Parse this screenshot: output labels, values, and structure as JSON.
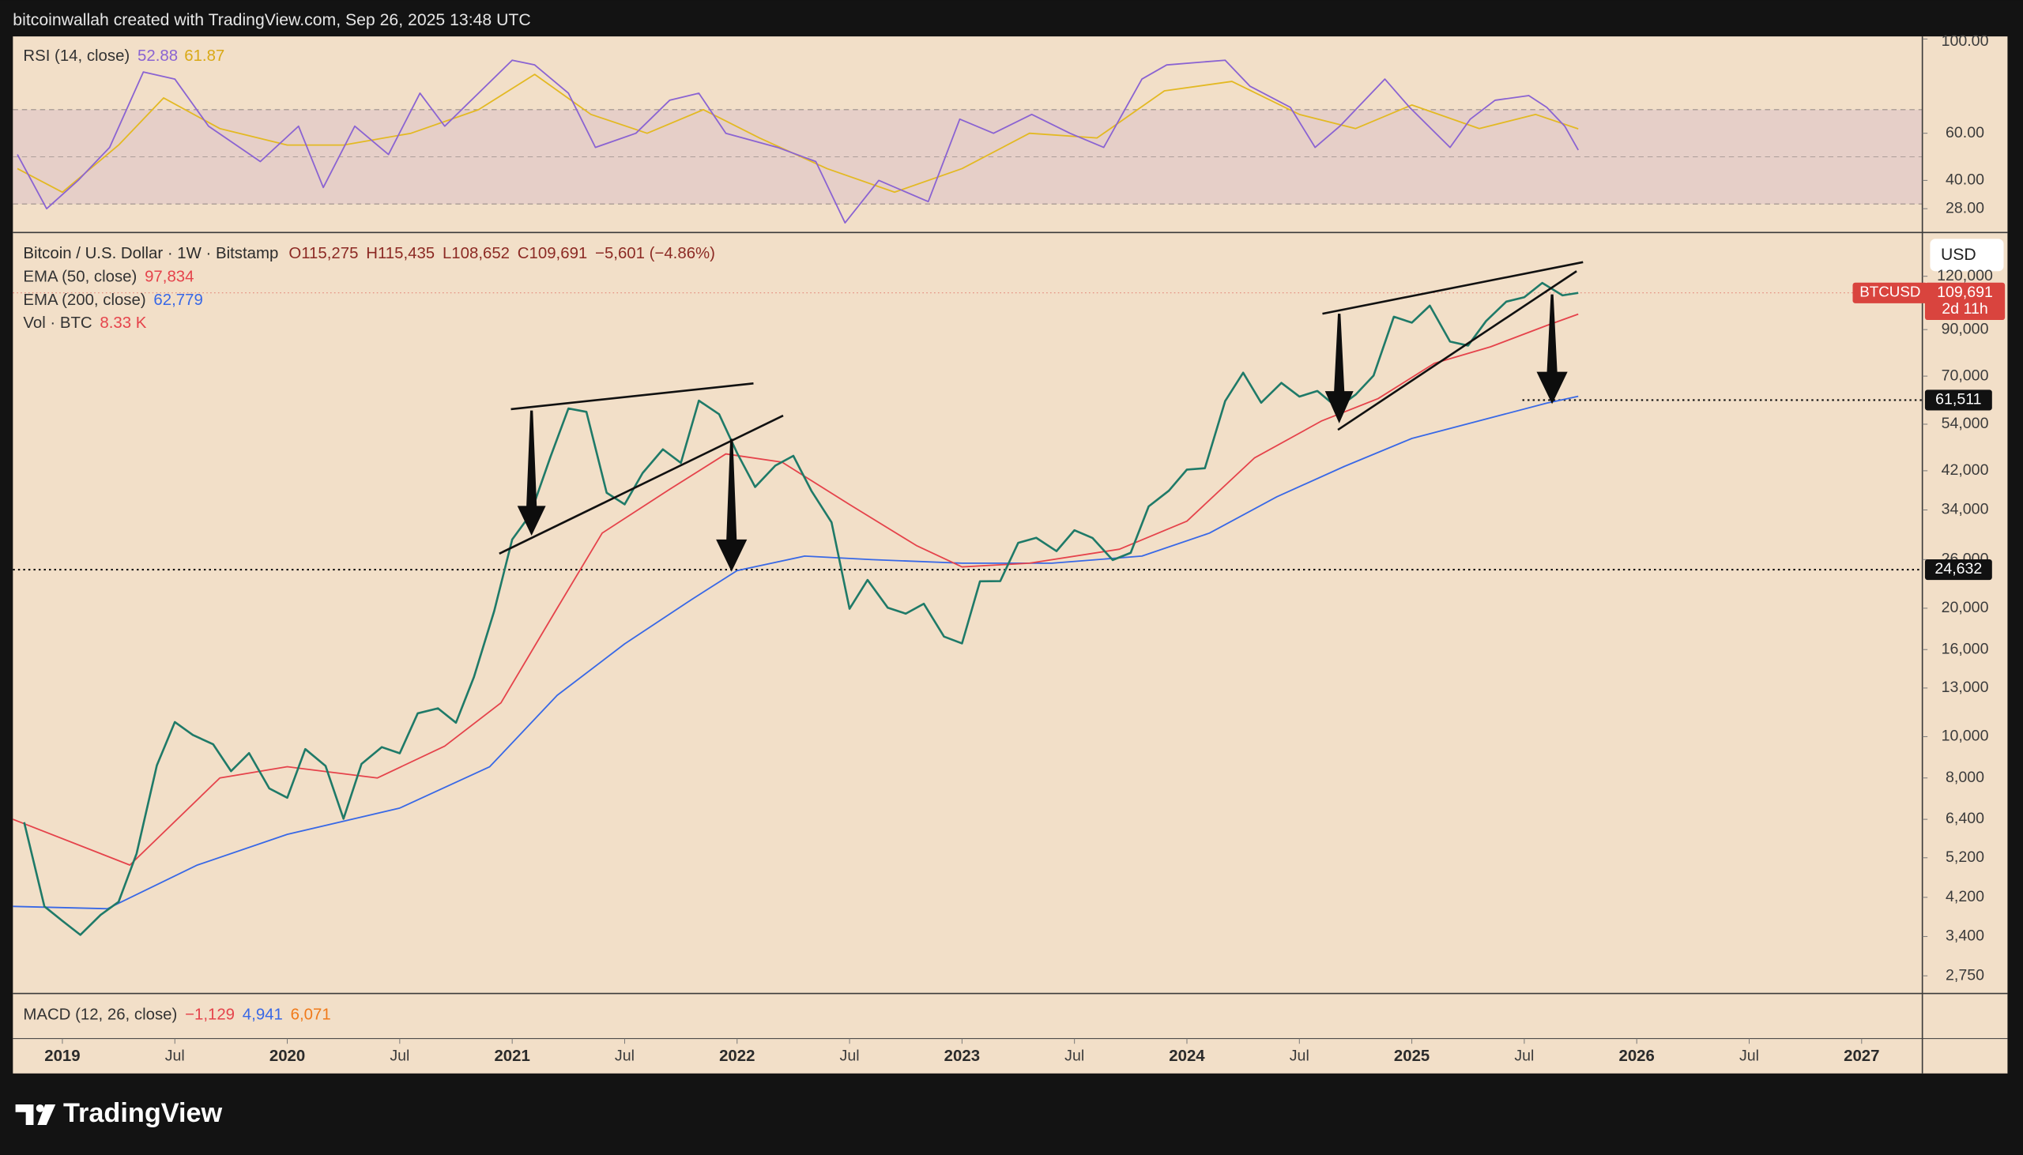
{
  "chart_data": {
    "type": "line",
    "header": "bitcoinwallah created with TradingView.com, Sep 26, 2025 13:48 UTC",
    "title": "Bitcoin / U.S. Dollar · 1W · Bitstamp",
    "ohlc": [
      {
        "value": 115275,
        "label": "O115,275"
      },
      {
        "value": 115435,
        "label": "H115,435"
      },
      {
        "value": 108652,
        "label": "L108,652"
      },
      {
        "value": 109691,
        "label": "C109,691"
      }
    ],
    "change": "−5,601 (−4.86%)",
    "currency": "USD",
    "log_scale": true,
    "grid": false,
    "xlim": [
      2018.78,
      2027.27
    ],
    "xticks": [
      2019,
      {
        "value": 2019.5,
        "label": "Jul"
      },
      2020,
      {
        "value": 2020.5,
        "label": "Jul"
      },
      2021,
      {
        "value": 2021.5,
        "label": "Jul"
      },
      2022,
      {
        "value": 2022.5,
        "label": "Jul"
      },
      2023,
      {
        "value": 2023.5,
        "label": "Jul"
      },
      2024,
      {
        "value": 2024.5,
        "label": "Jul"
      },
      2025,
      {
        "value": 2025.5,
        "label": "Jul"
      },
      2026,
      {
        "value": 2026.5,
        "label": "Jul"
      },
      2027
    ],
    "ylim": [
      2500,
      152000
    ],
    "yticks": [
      {
        "value": 120000,
        "label": "120,000"
      },
      {
        "value": 90000,
        "label": "90,000"
      },
      {
        "value": 70000,
        "label": "70,000"
      },
      {
        "value": 54000,
        "label": "54,000"
      },
      {
        "value": 42000,
        "label": "42,000"
      },
      {
        "value": 34000,
        "label": "34,000"
      },
      {
        "value": 26000,
        "label": "26,000"
      },
      {
        "value": 20000,
        "label": "20,000"
      },
      {
        "value": 16000,
        "label": "16,000"
      },
      {
        "value": 13000,
        "label": "13,000"
      },
      {
        "value": 10000,
        "label": "10,000"
      },
      {
        "value": 8000,
        "label": "8,000"
      },
      {
        "value": 6400,
        "label": "6,400"
      },
      {
        "value": 5200,
        "label": "5,200"
      },
      {
        "value": 4200,
        "label": "4,200"
      },
      {
        "value": 3400,
        "label": "3,400"
      },
      {
        "value": 2750,
        "label": "2,750"
      }
    ],
    "series": [
      {
        "color": "#1f7a68",
        "x": [
          2018.83,
          2018.92,
          2019.0,
          2019.08,
          2019.17,
          2019.25,
          2019.33,
          2019.42,
          2019.5,
          2019.58,
          2019.67,
          2019.75,
          2019.83,
          2019.92,
          2020.0,
          2020.08,
          2020.17,
          2020.25,
          2020.33,
          2020.42,
          2020.5,
          2020.58,
          2020.67,
          2020.75,
          2020.83,
          2020.92,
          2021.0,
          2021.08,
          2021.17,
          2021.25,
          2021.33,
          2021.42,
          2021.5,
          2021.58,
          2021.67,
          2021.75,
          2021.83,
          2021.92,
          2022.0,
          2022.08,
          2022.17,
          2022.25,
          2022.33,
          2022.42,
          2022.5,
          2022.58,
          2022.67,
          2022.75,
          2022.83,
          2022.92,
          2023.0,
          2023.08,
          2023.17,
          2023.25,
          2023.33,
          2023.42,
          2023.5,
          2023.58,
          2023.67,
          2023.75,
          2023.83,
          2023.92,
          2024.0,
          2024.08,
          2024.17,
          2024.25,
          2024.33,
          2024.42,
          2024.5,
          2024.58,
          2024.67,
          2024.75,
          2024.83,
          2024.92,
          2025.0,
          2025.08,
          2025.17,
          2025.25,
          2025.33,
          2025.42,
          2025.5,
          2025.58,
          2025.67,
          2025.74
        ],
        "values": [
          6300,
          4000,
          3700,
          3430,
          3820,
          4100,
          5320,
          8560,
          10820,
          10090,
          9600,
          8300,
          9150,
          7560,
          7190,
          9350,
          8540,
          6420,
          8630,
          9450,
          9140,
          11340,
          11650,
          10780,
          13800,
          19700,
          28990,
          33110,
          45240,
          58780,
          57720,
          37300,
          35040,
          41490,
          47150,
          43820,
          61320,
          57000,
          46220,
          38480,
          43180,
          45530,
          37710,
          31790,
          19940,
          23300,
          20050,
          19420,
          20490,
          17160,
          16540,
          23130,
          23150,
          28470,
          29250,
          27220,
          30470,
          29230,
          25940,
          26970,
          34650,
          37720,
          42270,
          42580,
          61180,
          71300,
          60640,
          67490,
          62690,
          64610,
          58970,
          63330,
          70220,
          96450,
          93430,
          102410,
          84350,
          82550,
          94210,
          104640,
          107140,
          115760,
          108250,
          109691
        ]
      },
      {
        "name": "EMA (50, close)",
        "value_label": {
          "value": 97834,
          "label": "97,834"
        },
        "color": "#e5434b",
        "x": [
          2018.78,
          2019.3,
          2019.7,
          2020.0,
          2020.4,
          2020.7,
          2020.95,
          2021.2,
          2021.4,
          2021.7,
          2021.95,
          2022.2,
          2022.5,
          2022.8,
          2023.0,
          2023.3,
          2023.7,
          2024.0,
          2024.3,
          2024.6,
          2024.85,
          2025.1,
          2025.35,
          2025.6,
          2025.74
        ],
        "values": [
          6400,
          5000,
          8000,
          8500,
          8000,
          9500,
          12000,
          20000,
          30000,
          38000,
          46000,
          44000,
          35000,
          28000,
          25000,
          25500,
          27500,
          32000,
          45000,
          55000,
          62000,
          75000,
          82000,
          92000,
          97834
        ]
      },
      {
        "name": "EMA (200, close)",
        "value_label": {
          "value": 62779,
          "label": "62,779"
        },
        "color": "#3868e6",
        "x": [
          2018.78,
          2019.2,
          2019.6,
          2020.0,
          2020.5,
          2020.9,
          2021.2,
          2021.5,
          2021.8,
          2022.0,
          2022.3,
          2022.6,
          2023.0,
          2023.4,
          2023.8,
          2024.1,
          2024.4,
          2024.7,
          2025.0,
          2025.3,
          2025.6,
          2025.74
        ],
        "values": [
          4000,
          3950,
          5000,
          5900,
          6800,
          8500,
          12500,
          16500,
          21000,
          24500,
          26500,
          26000,
          25500,
          25500,
          26500,
          30000,
          36500,
          43000,
          50000,
          55000,
          60500,
          62779
        ]
      }
    ],
    "volume": {
      "name": "Vol · BTC",
      "value_label": {
        "value": 8330,
        "label": "8.33 K"
      },
      "color": "#e5434b"
    },
    "levels": [
      {
        "value": 61511,
        "label": "61,511"
      },
      {
        "value": 24632,
        "label": "24,632"
      }
    ],
    "last": {
      "symbol": "BTCUSD",
      "price": {
        "value": 109691,
        "label": "109,691"
      },
      "countdown": "2d 11h",
      "color": "#d9443e"
    },
    "rsi": {
      "name": "RSI (14, close)",
      "ylim": [
        19,
        100
      ],
      "yticks": [
        {
          "value": 100,
          "label": "100.00"
        },
        {
          "value": 60,
          "label": "60.00"
        },
        {
          "value": 40,
          "label": "40.00"
        },
        {
          "value": 28,
          "label": "28.00"
        }
      ],
      "bands": [
        30,
        70
      ],
      "midline": 50,
      "series": [
        {
          "value_label": 52.88,
          "color": "#8a63d2",
          "x": [
            2018.8,
            2018.93,
            2019.07,
            2019.21,
            2019.36,
            2019.5,
            2019.65,
            2019.88,
            2020.05,
            2020.16,
            2020.3,
            2020.45,
            2020.59,
            2020.7,
            2020.85,
            2021.0,
            2021.1,
            2021.25,
            2021.37,
            2021.55,
            2021.7,
            2021.83,
            2021.95,
            2022.18,
            2022.35,
            2022.48,
            2022.63,
            2022.85,
            2022.99,
            2023.14,
            2023.31,
            2023.48,
            2023.63,
            2023.8,
            2023.91,
            2024.17,
            2024.28,
            2024.46,
            2024.57,
            2024.68,
            2024.88,
            2024.99,
            2025.17,
            2025.26,
            2025.37,
            2025.52,
            2025.6,
            2025.68,
            2025.74
          ],
          "values": [
            51,
            28,
            40,
            54,
            86,
            83,
            63,
            48,
            63,
            37,
            63,
            51,
            77,
            63,
            77,
            91,
            89,
            77,
            54,
            60,
            74,
            77,
            60,
            54,
            48,
            22,
            40,
            31,
            66,
            60,
            68,
            60,
            54,
            83,
            89,
            91,
            80,
            71,
            54,
            63,
            83,
            71,
            54,
            66,
            74,
            76,
            71,
            63,
            52.88
          ]
        },
        {
          "value_label": 61.87,
          "color": "#e3b923",
          "x": [
            2018.8,
            2019.0,
            2019.25,
            2019.45,
            2019.7,
            2020.0,
            2020.25,
            2020.55,
            2020.85,
            2021.1,
            2021.35,
            2021.6,
            2021.85,
            2022.1,
            2022.4,
            2022.7,
            2023.0,
            2023.3,
            2023.6,
            2023.9,
            2024.2,
            2024.5,
            2024.75,
            2025.0,
            2025.3,
            2025.55,
            2025.74
          ],
          "values": [
            45,
            35,
            55,
            75,
            62,
            55,
            55,
            60,
            70,
            85,
            68,
            60,
            70,
            58,
            45,
            35,
            45,
            60,
            58,
            78,
            82,
            68,
            62,
            72,
            62,
            68,
            61.87
          ]
        }
      ]
    },
    "macd": {
      "name": "MACD (12, 26, close)",
      "values": [
        {
          "value": -1129,
          "label": "−1,129",
          "color": "#e5434b"
        },
        {
          "value": 4941,
          "label": "4,941",
          "color": "#3868e6"
        },
        {
          "value": 6071,
          "label": "6,071",
          "color": "#f07a1a"
        }
      ]
    },
    "brand": "TradingView"
  }
}
